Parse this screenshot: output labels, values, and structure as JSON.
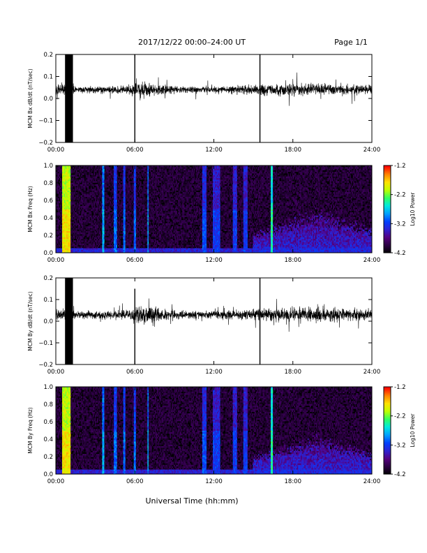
{
  "header": {
    "date_range": "2017/12/22  00:00–24:00 UT",
    "page": "Page 1/1"
  },
  "footer": {
    "xlabel": "Universal Time (hh:mm)"
  },
  "colors": {
    "trace": "#000000",
    "spectrogram_background": "#000000",
    "colormap": [
      "#000000",
      "#2a0040",
      "#55007f",
      "#3020d0",
      "#0040ff",
      "#00a0ff",
      "#00e8e0",
      "#30ff60",
      "#c0ff00",
      "#ffe000",
      "#ff8000",
      "#ff0000"
    ]
  },
  "chart_data": [
    {
      "type": "line",
      "ylabel": "MCM Bx dB/dt (nT/sec)",
      "xlim": [
        0,
        24
      ],
      "ylim": [
        -0.2,
        0.2
      ],
      "x_ticks": [
        "00:00",
        "06:00",
        "12:00",
        "18:00",
        "24:00"
      ],
      "y_ticks": [
        "0.2",
        "0.1",
        "0.0",
        "−0.1",
        "−0.2"
      ],
      "baseline": 0.04,
      "noise_envelope": {
        "hours": [
          0,
          1.0,
          1.5,
          5.5,
          6.5,
          9,
          12,
          15,
          18,
          21,
          24
        ],
        "amplitude": [
          0.03,
          0.04,
          0.02,
          0.03,
          0.05,
          0.025,
          0.022,
          0.035,
          0.04,
          0.035,
          0.03
        ]
      },
      "saturated_interval": [
        0.7,
        1.3
      ],
      "spikes": [
        {
          "hour": 6.0,
          "min": -0.2,
          "max": 0.2
        },
        {
          "hour": 15.5,
          "min": -0.2,
          "max": 0.2
        }
      ]
    },
    {
      "type": "heatmap",
      "ylabel": "MCM Bx Freq (Hz)",
      "colorbar_label": "Log10 Power",
      "colorbar_ticks": [
        "-1.2",
        "-2.2",
        "-3.2",
        "-4.2"
      ],
      "zlim": [
        -4.2,
        -1.2
      ],
      "xlim": [
        0,
        24
      ],
      "ylim": [
        0,
        1.0
      ],
      "x_ticks": [
        "00:00",
        "06:00",
        "12:00",
        "18:00",
        "24:00"
      ],
      "y_ticks": [
        "1.0",
        "0.8",
        "0.6",
        "0.4",
        "0.2",
        "0.0"
      ],
      "broadband_events": [
        {
          "hour": 0.8,
          "width": 0.7,
          "power": -1.6
        },
        {
          "hour": 3.6,
          "width": 0.15,
          "power": -2.6
        },
        {
          "hour": 4.5,
          "width": 0.25,
          "power": -2.8
        },
        {
          "hour": 5.2,
          "width": 0.2,
          "power": -2.8
        },
        {
          "hour": 6.0,
          "width": 0.15,
          "power": -2.8
        },
        {
          "hour": 7.0,
          "width": 0.15,
          "power": -2.6
        },
        {
          "hour": 11.3,
          "width": 0.3,
          "power": -2.9
        },
        {
          "hour": 12.2,
          "width": 0.6,
          "power": -3.0
        },
        {
          "hour": 13.6,
          "width": 0.3,
          "power": -3.0
        },
        {
          "hour": 14.4,
          "width": 0.3,
          "power": -3.0
        },
        {
          "hour": 16.4,
          "width": 0.12,
          "power": -2.2
        }
      ],
      "low_freq_enhancement": {
        "start": 15,
        "end": 24,
        "peak_hour": 20,
        "max_freq": 0.45,
        "power": -3.1
      }
    },
    {
      "type": "line",
      "ylabel": "MCM By dB/dt (nT/sec)",
      "xlim": [
        0,
        24
      ],
      "ylim": [
        -0.2,
        0.2
      ],
      "x_ticks": [
        "00:00",
        "06:00",
        "12:00",
        "18:00",
        "24:00"
      ],
      "y_ticks": [
        "0.2",
        "0.1",
        "0.0",
        "−0.1",
        "−0.2"
      ],
      "baseline": 0.03,
      "noise_envelope": {
        "hours": [
          0,
          1.0,
          1.5,
          5.5,
          6.5,
          9,
          12,
          15,
          18,
          21,
          24
        ],
        "amplitude": [
          0.035,
          0.04,
          0.025,
          0.03,
          0.06,
          0.03,
          0.025,
          0.04,
          0.05,
          0.045,
          0.035
        ]
      },
      "saturated_interval": [
        0.7,
        1.3
      ],
      "spikes": [
        {
          "hour": 6.0,
          "min": -0.2,
          "max": 0.15
        },
        {
          "hour": 15.5,
          "min": -0.2,
          "max": 0.2
        }
      ]
    },
    {
      "type": "heatmap",
      "ylabel": "MCM By Freq (Hz)",
      "colorbar_label": "Log10 Power",
      "colorbar_ticks": [
        "-1.2",
        "-2.2",
        "-3.2",
        "-4.2"
      ],
      "zlim": [
        -4.2,
        -1.2
      ],
      "xlim": [
        0,
        24
      ],
      "ylim": [
        0,
        1.0
      ],
      "x_ticks": [
        "00:00",
        "06:00",
        "12:00",
        "18:00",
        "24:00"
      ],
      "y_ticks": [
        "1.0",
        "0.8",
        "0.6",
        "0.4",
        "0.2",
        "0.0"
      ],
      "broadband_events": [
        {
          "hour": 0.8,
          "width": 0.7,
          "power": -1.6
        },
        {
          "hour": 3.6,
          "width": 0.15,
          "power": -2.6
        },
        {
          "hour": 4.5,
          "width": 0.25,
          "power": -2.8
        },
        {
          "hour": 5.2,
          "width": 0.2,
          "power": -2.8
        },
        {
          "hour": 6.0,
          "width": 0.15,
          "power": -2.8
        },
        {
          "hour": 7.0,
          "width": 0.15,
          "power": -2.6
        },
        {
          "hour": 11.3,
          "width": 0.3,
          "power": -2.9
        },
        {
          "hour": 12.2,
          "width": 0.6,
          "power": -3.0
        },
        {
          "hour": 13.6,
          "width": 0.3,
          "power": -3.0
        },
        {
          "hour": 14.4,
          "width": 0.3,
          "power": -3.0
        },
        {
          "hour": 16.4,
          "width": 0.12,
          "power": -2.2
        }
      ],
      "low_freq_enhancement": {
        "start": 15,
        "end": 24,
        "peak_hour": 20,
        "max_freq": 0.4,
        "power": -3.1
      }
    }
  ]
}
